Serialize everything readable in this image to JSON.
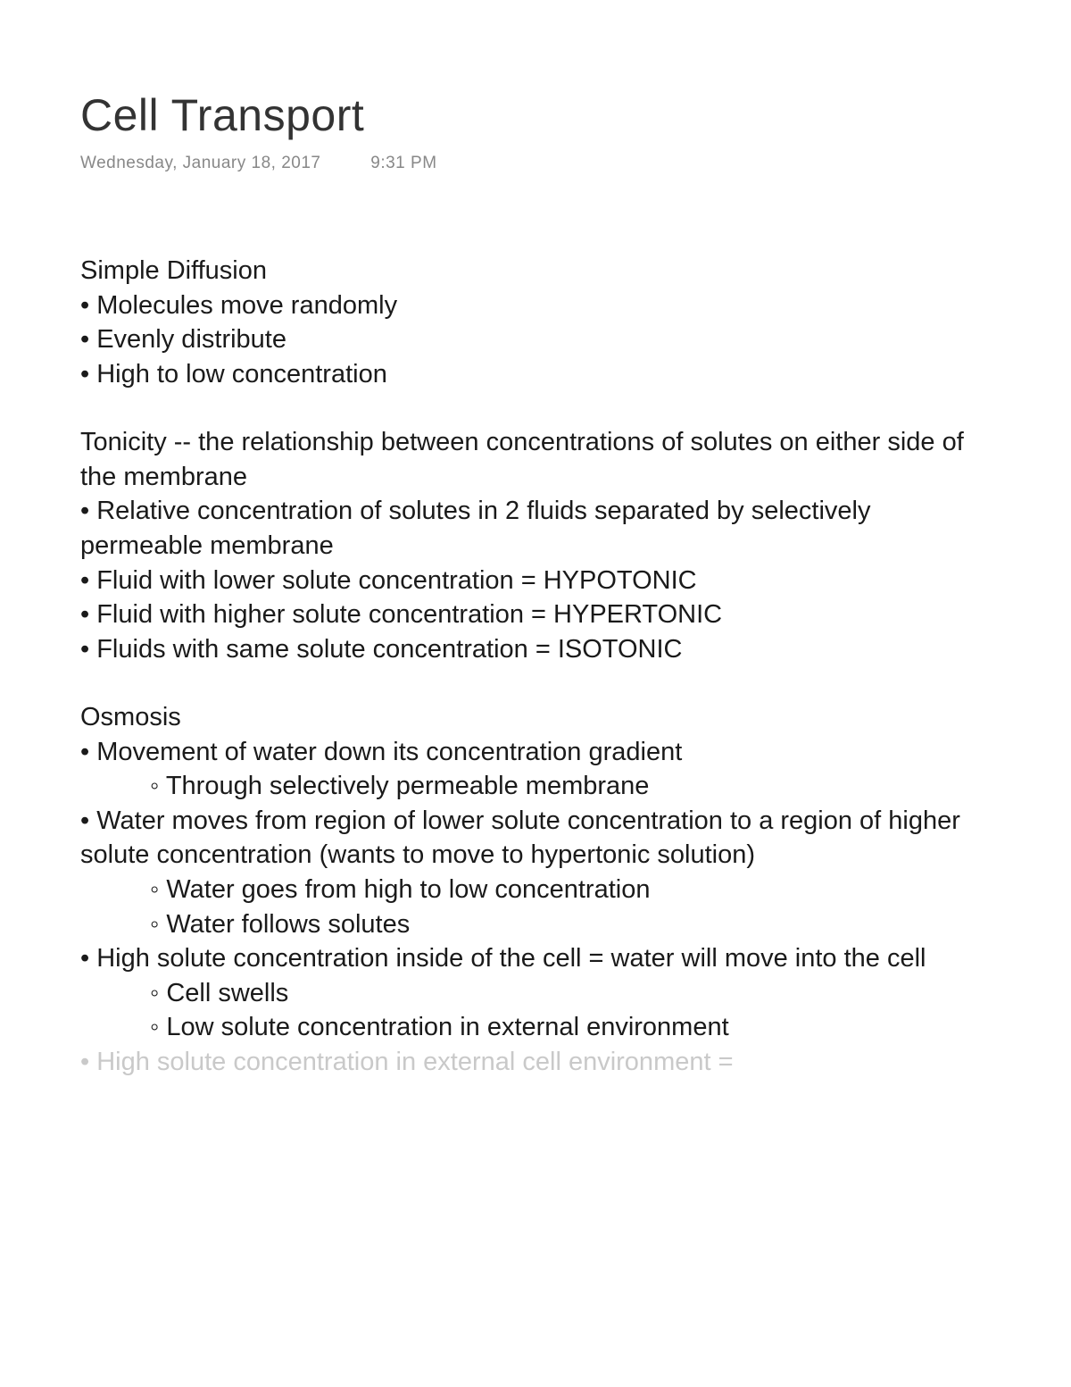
{
  "title": "Cell Transport",
  "date": "Wednesday, January 18, 2017",
  "time": "9:31 PM",
  "blocks": [
    {
      "lines": [
        {
          "text": "Simple Diffusion",
          "cls": "section-head"
        },
        {
          "text": "• Molecules move randomly",
          "cls": "bullet"
        },
        {
          "text": "• Evenly distribute",
          "cls": "bullet"
        },
        {
          "text": "• High to low concentration",
          "cls": "bullet"
        }
      ]
    },
    {
      "lines": [
        {
          "text": "Tonicity -- the relationship between concentrations of solutes on either side of the membrane",
          "cls": "line"
        },
        {
          "text": "• Relative concentration of solutes in 2 fluids separated by selectively permeable membrane",
          "cls": "bullet"
        },
        {
          "text": "• Fluid with lower solute concentration = HYPOTONIC",
          "cls": "bullet"
        },
        {
          "text": "• Fluid with higher solute concentration = HYPERTONIC",
          "cls": "bullet"
        },
        {
          "text": "• Fluids with same solute concentration = ISOTONIC",
          "cls": "bullet"
        }
      ]
    },
    {
      "lines": [
        {
          "text": "Osmosis",
          "cls": "section-head"
        },
        {
          "text": "• Movement of water down its concentration gradient",
          "cls": "bullet"
        },
        {
          "text": "◦ Through selectively permeable membrane",
          "cls": "sub"
        },
        {
          "text": "• Water moves from region of lower solute concentration to a region of higher solute concentration (wants to move to hypertonic solution)",
          "cls": "bullet"
        },
        {
          "text": "◦ Water goes from high to low concentration",
          "cls": "sub"
        },
        {
          "text": "◦ Water follows solutes",
          "cls": "sub"
        },
        {
          "text": "• High solute concentration inside of the cell = water will move into the cell",
          "cls": "bullet"
        },
        {
          "text": "◦ Cell swells",
          "cls": "sub"
        },
        {
          "text": "◦ Low solute concentration in external environment",
          "cls": "sub"
        },
        {
          "text": "• High solute concentration in external cell environment =",
          "cls": "bullet cutoff"
        }
      ]
    }
  ]
}
